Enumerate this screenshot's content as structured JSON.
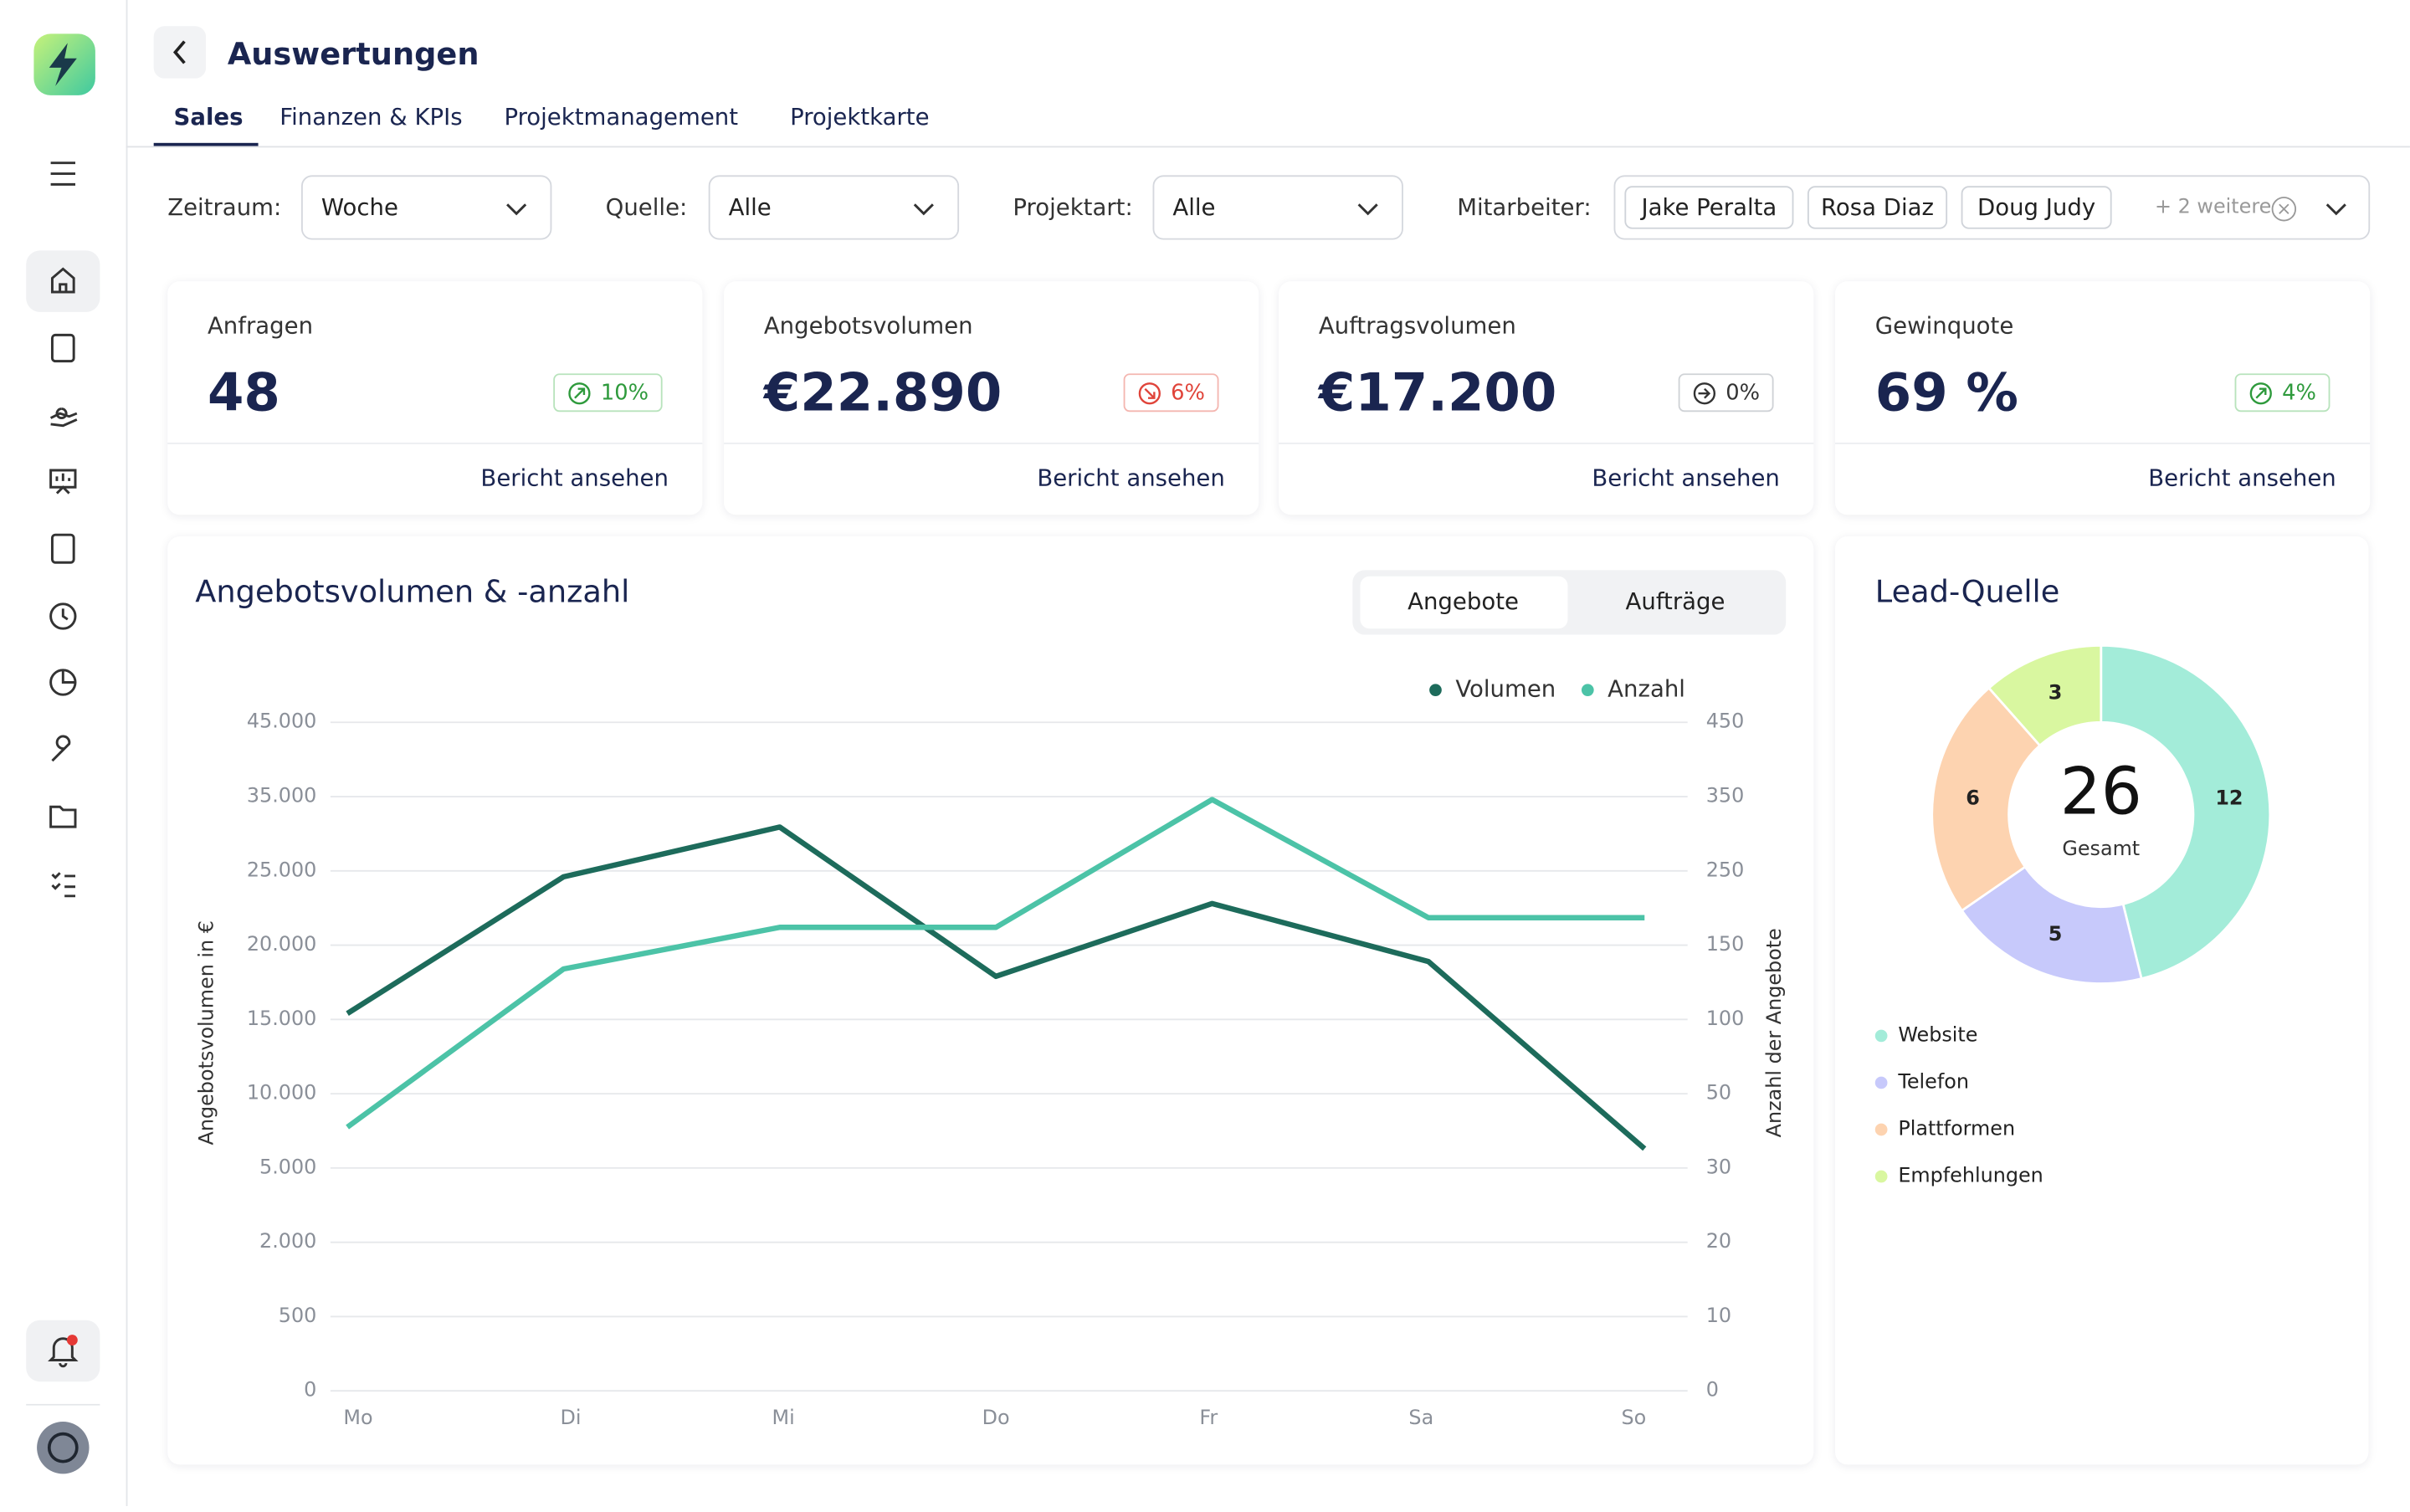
{
  "header": {
    "title": "Auswertungen"
  },
  "tabs": [
    "Sales",
    "Finanzen & KPIs",
    "Projektmanagement",
    "Projektkarte"
  ],
  "filters": [
    {
      "label": "Zeitraum:",
      "value": "Woche"
    },
    {
      "label": "Quelle:",
      "value": "Alle"
    },
    {
      "label": "Projektart:",
      "value": "Alle"
    }
  ],
  "employees": {
    "label": "Mitarbeiter:",
    "selected": [
      "Jake Peralta",
      "Rosa Diaz",
      "Doug Judy"
    ],
    "more": "+ 2 weitere"
  },
  "kpis": [
    {
      "title": "Anfragen",
      "value": "48",
      "change": "10%",
      "trend": "up",
      "link": "Bericht ansehen"
    },
    {
      "title": "Angebotsvolumen",
      "value": "€22.890",
      "change": "6%",
      "trend": "down",
      "link": "Bericht ansehen"
    },
    {
      "title": "Auftragsvolumen",
      "value": "€17.200",
      "change": "0%",
      "trend": "flat",
      "link": "Bericht ansehen"
    },
    {
      "title": "Gewinquote",
      "value": "69 %",
      "change": "4%",
      "trend": "up",
      "link": "Bericht ansehen"
    }
  ],
  "chart_data": [
    {
      "type": "line",
      "title": "Angebotsvolumen & -anzahl",
      "toggle": [
        "Angebote",
        "Aufträge"
      ],
      "categories": [
        "Mo",
        "Di",
        "Mi",
        "Do",
        "Fr",
        "Sa",
        "So"
      ],
      "series": [
        {
          "name": "Volumen",
          "color": "#1d6b5b",
          "values": [
            15400,
            24600,
            30900,
            17900,
            22800,
            18900,
            6300
          ]
        },
        {
          "name": "Anzahl",
          "color": "#4cc3a7",
          "values": [
            41,
            134,
            174,
            174,
            346,
            187,
            187
          ],
          "axis": "y2"
        }
      ],
      "ylabel": "Angebotsvolumen in €",
      "y2label": "Anzahl der Angebote",
      "ylim": [
        0,
        45000
      ],
      "yticks": [
        0,
        500,
        {
          "value": 2000,
          "label": "2.000"
        },
        {
          "value": 5000,
          "label": "5.000"
        },
        {
          "value": 10000,
          "label": "10.000"
        },
        {
          "value": 15000,
          "label": "15.000"
        },
        {
          "value": 20000,
          "label": "20.000"
        },
        {
          "value": 25000,
          "label": "25.000"
        },
        {
          "value": 35000,
          "label": "35.000"
        },
        {
          "value": 45000,
          "label": "45.000"
        }
      ],
      "y2lim": [
        0,
        450
      ],
      "y2ticks": [
        0,
        10,
        20,
        30,
        50,
        100,
        150,
        250,
        350,
        450
      ],
      "yscale": "piecewise",
      "grid": true
    },
    {
      "type": "donut",
      "title": "Lead-Quelle",
      "categories": [
        "Website",
        "Telefon",
        "Plattformen",
        "Empfehlungen"
      ],
      "values": [
        12,
        5,
        6,
        3
      ],
      "colors": [
        "#a3ecd9",
        "#c7c9fb",
        "#fdd3b0",
        "#d9f7a0"
      ],
      "total": 26,
      "total_label": "Gesamt"
    }
  ]
}
